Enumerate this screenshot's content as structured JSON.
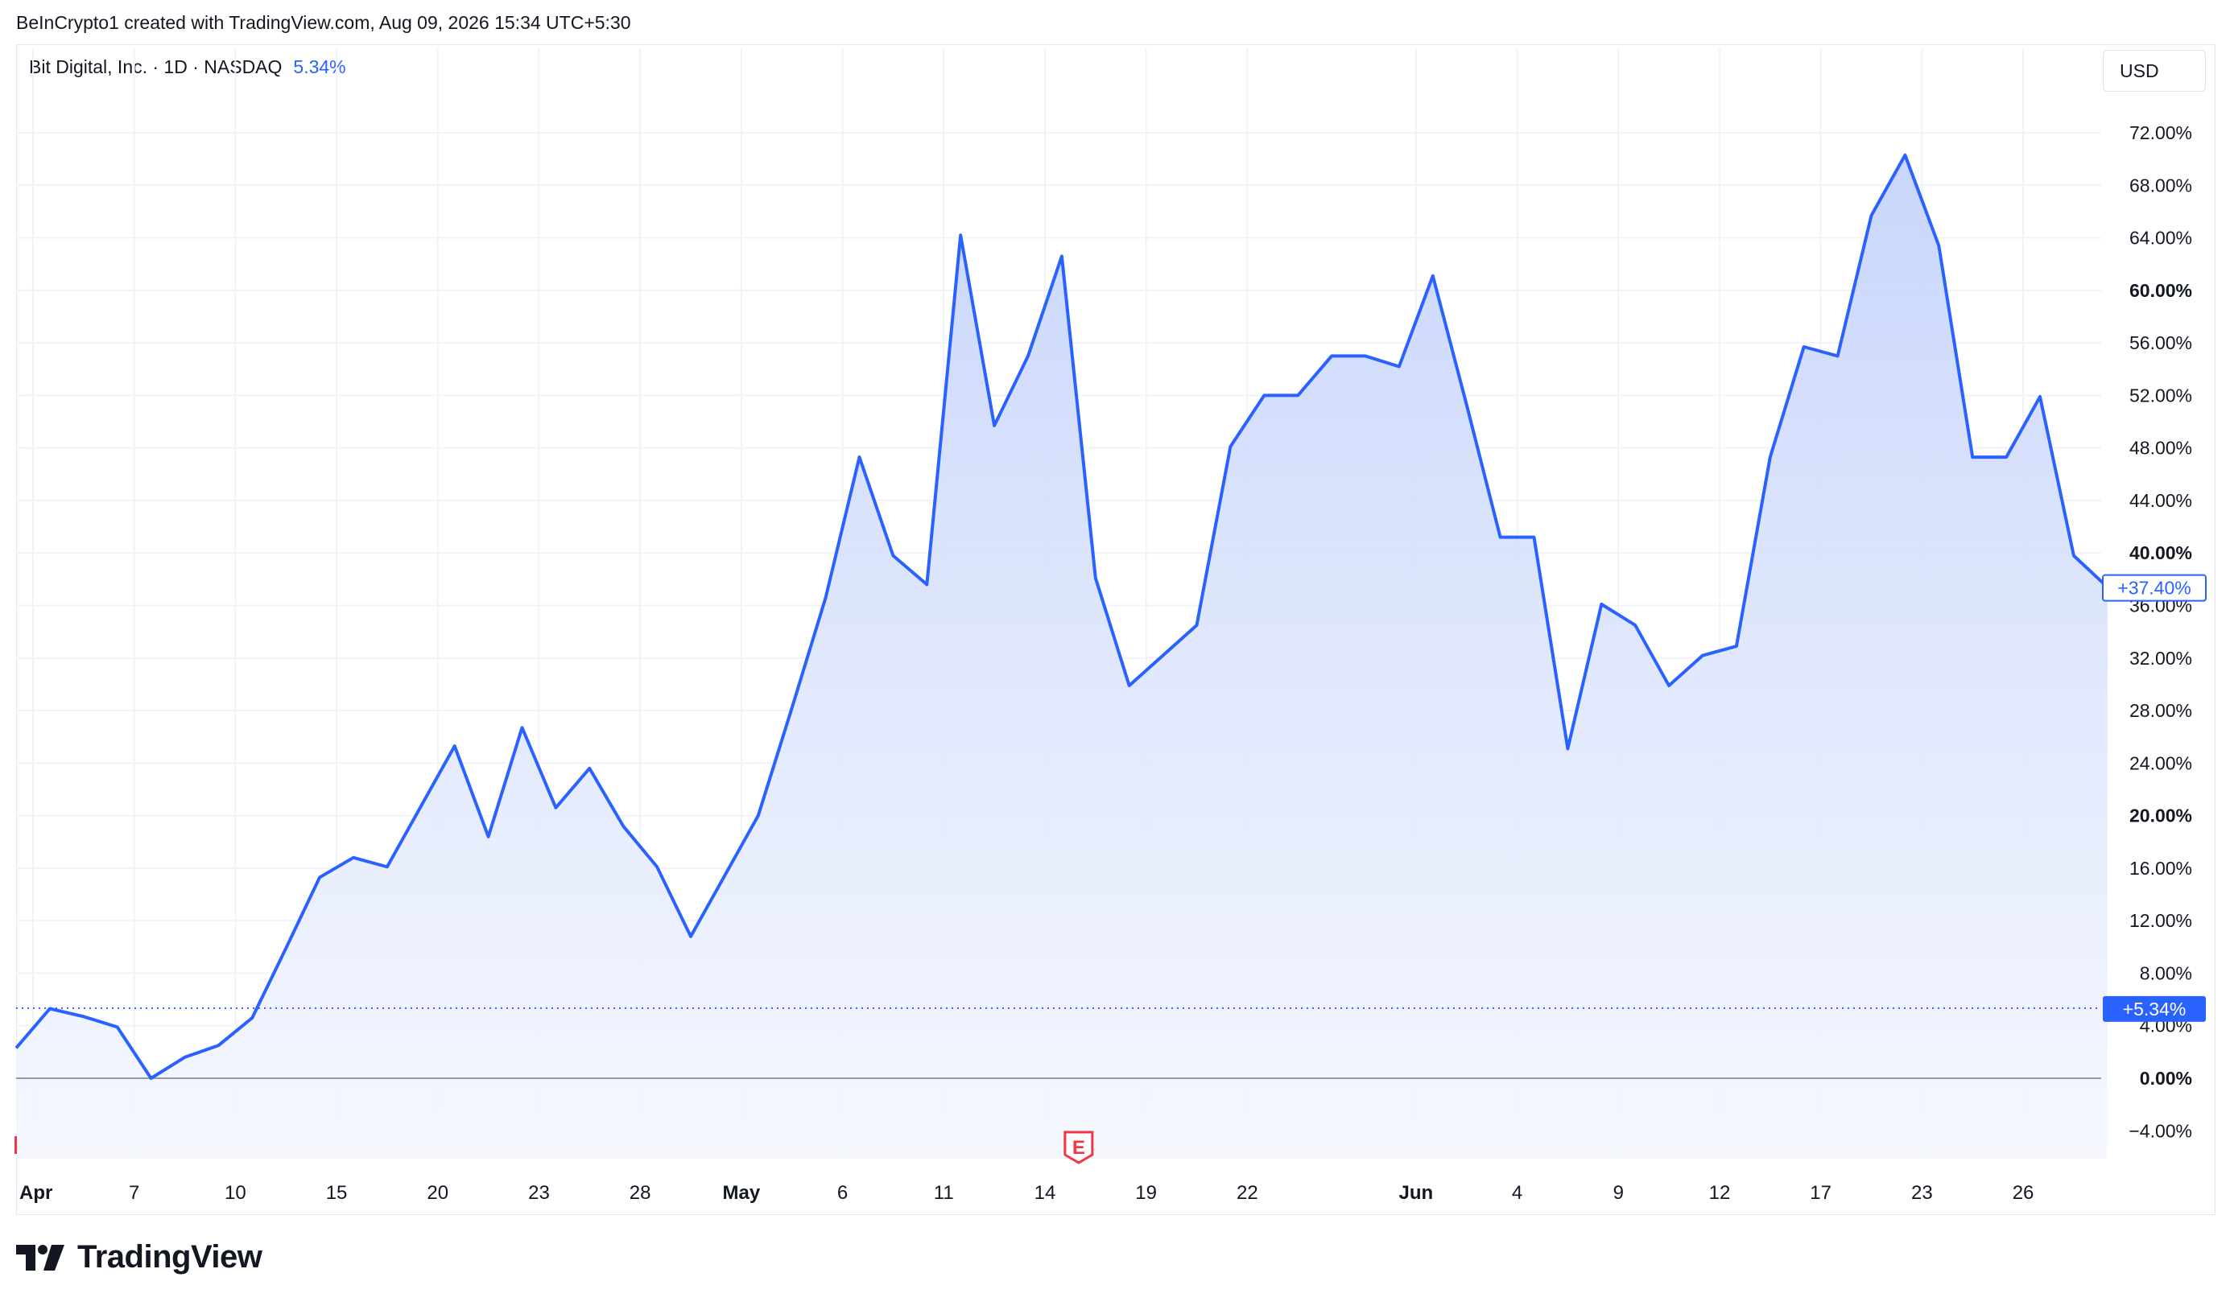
{
  "header": {
    "attribution": "BeInCrypto1 created with TradingView.com, Aug 09, 2026 15:34 UTC+5:30"
  },
  "legend": {
    "symbol": "Bit Digital, Inc. · 1D · NASDAQ",
    "change": "5.34%"
  },
  "currency_button": "USD",
  "brand": {
    "name": "TradingView"
  },
  "colors": {
    "line": "#2962ff",
    "fill_top": "#c6d4fb",
    "fill_bottom": "#f5f7fe",
    "grid": "#f0f3fa",
    "zero_line": "#9598a1",
    "marker_red": "#f23645"
  },
  "chart_data": {
    "type": "area",
    "y_unit": "%",
    "ylim": [
      -6,
      75
    ],
    "grid": true,
    "y_ticks": [
      {
        "value": 72,
        "label": "72.00%",
        "bold": false
      },
      {
        "value": 68,
        "label": "68.00%",
        "bold": false
      },
      {
        "value": 64,
        "label": "64.00%",
        "bold": false
      },
      {
        "value": 60,
        "label": "60.00%",
        "bold": true
      },
      {
        "value": 56,
        "label": "56.00%",
        "bold": false
      },
      {
        "value": 52,
        "label": "52.00%",
        "bold": false
      },
      {
        "value": 48,
        "label": "48.00%",
        "bold": false
      },
      {
        "value": 44,
        "label": "44.00%",
        "bold": false
      },
      {
        "value": 40,
        "label": "40.00%",
        "bold": true
      },
      {
        "value": 36,
        "label": "36.00%",
        "bold": false
      },
      {
        "value": 32,
        "label": "32.00%",
        "bold": false
      },
      {
        "value": 28,
        "label": "28.00%",
        "bold": false
      },
      {
        "value": 24,
        "label": "24.00%",
        "bold": false
      },
      {
        "value": 20,
        "label": "20.00%",
        "bold": true
      },
      {
        "value": 16,
        "label": "16.00%",
        "bold": false
      },
      {
        "value": 12,
        "label": "12.00%",
        "bold": false
      },
      {
        "value": 8,
        "label": "8.00%",
        "bold": false
      },
      {
        "value": 4,
        "label": "4.00%",
        "bold": false
      },
      {
        "value": 0,
        "label": "0.00%",
        "bold": true
      },
      {
        "value": -4,
        "label": "−4.00%",
        "bold": false
      }
    ],
    "x_ticks": [
      {
        "i": 0.5,
        "label": "Apr",
        "bold": true
      },
      {
        "i": 3.5,
        "label": "7",
        "bold": false
      },
      {
        "i": 6.5,
        "label": "10",
        "bold": false
      },
      {
        "i": 9.5,
        "label": "15",
        "bold": false
      },
      {
        "i": 12.5,
        "label": "20",
        "bold": false
      },
      {
        "i": 15.5,
        "label": "23",
        "bold": false
      },
      {
        "i": 18.5,
        "label": "28",
        "bold": false
      },
      {
        "i": 21.5,
        "label": "May",
        "bold": true
      },
      {
        "i": 24.5,
        "label": "6",
        "bold": false
      },
      {
        "i": 27.5,
        "label": "11",
        "bold": false
      },
      {
        "i": 30.5,
        "label": "14",
        "bold": false
      },
      {
        "i": 33.5,
        "label": "19",
        "bold": false
      },
      {
        "i": 36.5,
        "label": "22",
        "bold": false
      },
      {
        "i": 41.5,
        "label": "Jun",
        "bold": true
      },
      {
        "i": 44.5,
        "label": "4",
        "bold": false
      },
      {
        "i": 47.5,
        "label": "9",
        "bold": false
      },
      {
        "i": 50.5,
        "label": "12",
        "bold": false
      },
      {
        "i": 53.5,
        "label": "17",
        "bold": false
      },
      {
        "i": 56.5,
        "label": "23",
        "bold": false
      },
      {
        "i": 59.5,
        "label": "26",
        "bold": false
      }
    ],
    "series": [
      {
        "values": [
          2.3,
          5.3,
          4.7,
          3.9,
          0.0,
          1.6,
          2.5,
          4.6,
          9.9,
          15.3,
          16.8,
          16.1,
          20.7,
          25.3,
          18.4,
          26.7,
          20.6,
          23.6,
          19.2,
          16.1,
          10.8,
          15.4,
          20.0,
          28.2,
          36.6,
          47.3,
          39.8,
          37.6,
          64.2,
          49.7,
          55.0,
          62.6,
          38.1,
          29.9,
          32.2,
          34.5,
          48.1,
          52.0,
          52.0,
          55.0,
          55.0,
          54.2,
          61.1,
          51.3,
          41.2,
          41.2,
          25.1,
          36.1,
          34.5,
          29.9,
          32.2,
          32.9,
          47.3,
          55.7,
          55.0,
          65.7,
          70.3,
          63.4,
          47.3,
          47.3,
          51.9,
          39.8,
          37.4
        ]
      }
    ],
    "reference_line": {
      "value": 5.34
    },
    "markers": [
      {
        "i": 31.5,
        "label": "E"
      }
    ],
    "price_labels": {
      "last": "+37.40%",
      "reference": "+5.34%"
    }
  }
}
